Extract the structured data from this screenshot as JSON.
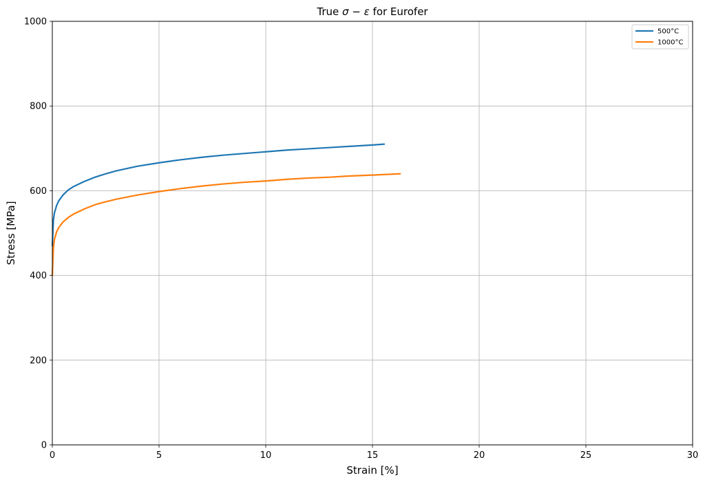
{
  "chart_data": {
    "type": "line",
    "title_prefix": "True ",
    "title_math": "σ − ε",
    "title_suffix": " for Eurofer",
    "xlabel": "Strain [%]",
    "ylabel": "Stress [MPa]",
    "xlim": [
      0,
      30
    ],
    "ylim": [
      0,
      1000
    ],
    "xticks": [
      0,
      5,
      10,
      15,
      20,
      25,
      30
    ],
    "yticks": [
      0,
      200,
      400,
      600,
      800,
      1000
    ],
    "grid": true,
    "legend_position": "top-right",
    "series": [
      {
        "name": "500°C",
        "color": "#1f77b4",
        "x": [
          0,
          0.05,
          0.1,
          0.2,
          0.3,
          0.5,
          0.75,
          1,
          1.5,
          2,
          2.5,
          3,
          4,
          5,
          6,
          7,
          8,
          9,
          10,
          11,
          12,
          13,
          14,
          15,
          15.55
        ],
        "y": [
          470,
          530,
          548,
          565,
          576,
          590,
          602,
          610,
          622,
          632,
          640,
          647,
          658,
          666,
          673,
          679,
          684,
          688,
          692,
          696,
          699,
          702,
          705,
          708,
          710
        ]
      },
      {
        "name": "1000°C",
        "color": "#ff7f0e",
        "x": [
          0,
          0.05,
          0.1,
          0.2,
          0.3,
          0.5,
          0.75,
          1,
          1.5,
          2,
          2.5,
          3,
          4,
          5,
          6,
          7,
          8,
          9,
          10,
          11,
          12,
          13,
          14,
          15,
          16.3
        ],
        "y": [
          400,
          465,
          485,
          503,
          513,
          526,
          537,
          545,
          557,
          567,
          574,
          580,
          590,
          598,
          605,
          611,
          616,
          620,
          623,
          627,
          630,
          632,
          635,
          637,
          640
        ]
      }
    ]
  }
}
